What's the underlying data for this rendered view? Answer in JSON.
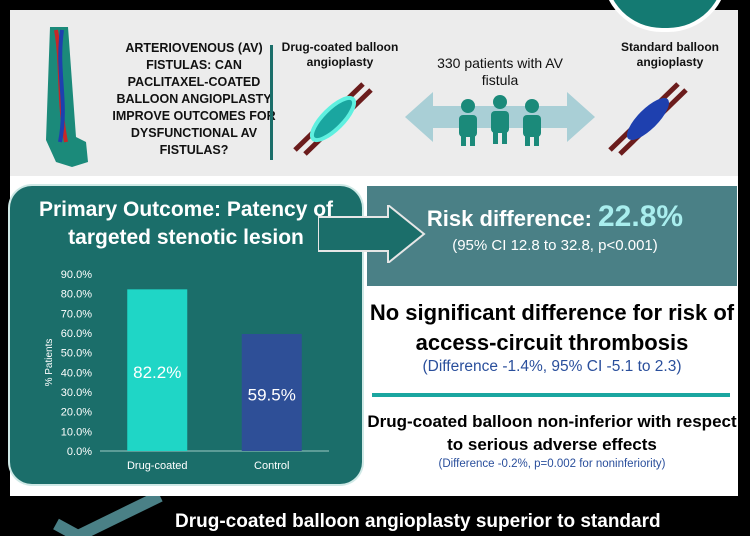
{
  "header": {
    "question": "ARTERIOVENOUS (AV) FISTULAS: CAN PACLITAXEL-COATED BALLOON ANGIOPLASTY IMPROVE OUTCOMES FOR DYSFUNCTIONAL AV FISTULAS?",
    "arm_left_label": "Drug-coated balloon angioplasty",
    "arm_right_label": "Standard balloon angioplasty",
    "patients_label": "330 patients with AV fistula"
  },
  "outcome": {
    "title": "Primary Outcome: Patency of targeted stenotic lesion"
  },
  "risk": {
    "label": "Risk difference:",
    "value": "22.8%",
    "ci": "(95% CI 12.8 to 32.8, p<0.001)"
  },
  "thrombosis": {
    "text": "No significant difference for risk of access-circuit thrombosis",
    "detail": "(Difference -1.4%, 95% CI -5.1 to 2.3)"
  },
  "safety": {
    "text": "Drug-coated balloon non-inferior with respect to serious adverse effects",
    "detail": "(Difference -0.2%, p=0.002 for noninferiority)"
  },
  "conclusion": "Drug-coated balloon angioplasty superior to standard",
  "colors": {
    "teal_dark": "#1b6e6a",
    "bar_drug": "#1fd6c6",
    "bar_control": "#2e4f97",
    "risk_value": "#a9eeee",
    "detail_text": "#2a4f9c"
  },
  "chart_data": {
    "type": "bar",
    "categories": [
      "Drug-coated",
      "Control"
    ],
    "values": [
      82.2,
      59.5
    ],
    "data_labels": [
      "82.2%",
      "59.5%"
    ],
    "ylabel": "% Patients",
    "ylim": [
      0,
      90
    ],
    "yticks": [
      "0.0%",
      "10.0%",
      "20.0%",
      "30.0%",
      "40.0%",
      "50.0%",
      "60.0%",
      "70.0%",
      "80.0%",
      "90.0%"
    ],
    "grid": false,
    "legend": "none"
  }
}
